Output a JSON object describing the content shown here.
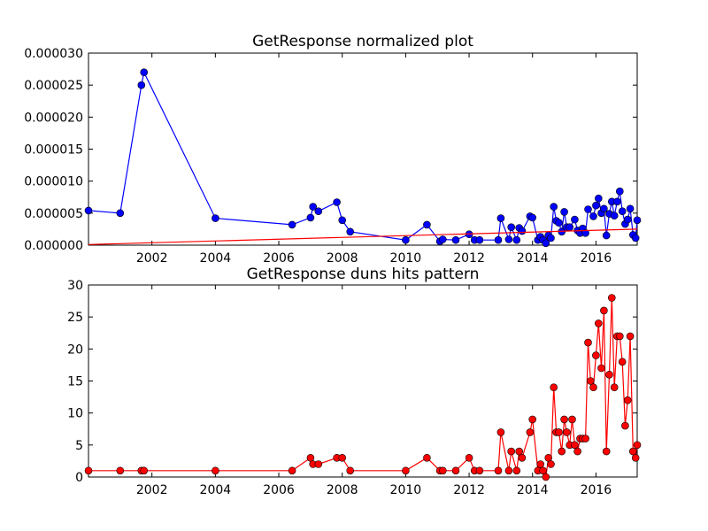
{
  "chart_data": [
    {
      "type": "line",
      "title": "GetResponse normalized plot",
      "xlabel": "",
      "ylabel": "",
      "xlim": [
        2000.0,
        2017.3
      ],
      "ylim": [
        0,
        3e-05
      ],
      "xticks": [
        2002,
        2004,
        2006,
        2008,
        2010,
        2012,
        2014,
        2016
      ],
      "xtick_labels": [
        "2002",
        "2004",
        "2006",
        "2008",
        "2010",
        "2012",
        "2014",
        "2016"
      ],
      "yticks": [
        0,
        5e-06,
        1e-05,
        1.5e-05,
        2e-05,
        2.5e-05,
        3e-05
      ],
      "ytick_labels": [
        "0.000000",
        "0.000005",
        "0.000010",
        "0.000015",
        "0.000020",
        "0.000025",
        "0.000030"
      ],
      "series": [
        {
          "color": "#0000ff",
          "marker": "circle",
          "points": [
            [
              2000.0,
              5.4e-06
            ],
            [
              2001.0,
              5e-06
            ],
            [
              2001.67,
              2.5e-05
            ],
            [
              2001.75,
              2.7e-05
            ],
            [
              2004.0,
              4.2e-06
            ],
            [
              2006.42,
              3.2e-06
            ],
            [
              2007.0,
              4.3e-06
            ],
            [
              2007.08,
              6e-06
            ],
            [
              2007.25,
              5.3e-06
            ],
            [
              2007.83,
              6.7e-06
            ],
            [
              2008.0,
              3.9e-06
            ],
            [
              2008.25,
              2.1e-06
            ],
            [
              2010.0,
              8e-07
            ],
            [
              2010.67,
              3.2e-06
            ],
            [
              2011.08,
              6e-07
            ],
            [
              2011.17,
              9e-07
            ],
            [
              2011.58,
              8e-07
            ],
            [
              2012.0,
              1.7e-06
            ],
            [
              2012.17,
              8e-07
            ],
            [
              2012.33,
              8e-07
            ],
            [
              2012.92,
              8e-07
            ],
            [
              2013.0,
              4.2e-06
            ],
            [
              2013.25,
              9e-07
            ],
            [
              2013.33,
              2.8e-06
            ],
            [
              2013.5,
              8e-07
            ],
            [
              2013.58,
              2.7e-06
            ],
            [
              2013.67,
              2.2e-06
            ],
            [
              2013.92,
              4.5e-06
            ],
            [
              2014.0,
              4.3e-06
            ],
            [
              2014.17,
              8e-07
            ],
            [
              2014.25,
              1.3e-06
            ],
            [
              2014.33,
              8e-07
            ],
            [
              2014.42,
              3e-07
            ],
            [
              2014.5,
              1.5e-06
            ],
            [
              2014.58,
              1.1e-06
            ],
            [
              2014.67,
              6e-06
            ],
            [
              2014.75,
              3.8e-06
            ],
            [
              2014.83,
              3.5e-06
            ],
            [
              2014.92,
              2.1e-06
            ],
            [
              2015.0,
              5.2e-06
            ],
            [
              2015.08,
              2.8e-06
            ],
            [
              2015.17,
              2.8e-06
            ],
            [
              2015.33,
              4e-06
            ],
            [
              2015.42,
              2.3e-06
            ],
            [
              2015.5,
              1.9e-06
            ],
            [
              2015.58,
              2.6e-06
            ],
            [
              2015.67,
              1.9e-06
            ],
            [
              2015.75,
              5.6e-06
            ],
            [
              2015.92,
              4.5e-06
            ],
            [
              2016.0,
              6.2e-06
            ],
            [
              2016.08,
              7.3e-06
            ],
            [
              2016.17,
              5e-06
            ],
            [
              2016.25,
              5.7e-06
            ],
            [
              2016.33,
              1.5e-06
            ],
            [
              2016.42,
              4.9e-06
            ],
            [
              2016.5,
              6.8e-06
            ],
            [
              2016.58,
              4.6e-06
            ],
            [
              2016.67,
              6.8e-06
            ],
            [
              2016.75,
              8.4e-06
            ],
            [
              2016.83,
              5.3e-06
            ],
            [
              2016.92,
              3.3e-06
            ],
            [
              2017.0,
              4e-06
            ],
            [
              2017.08,
              5.7e-06
            ],
            [
              2017.17,
              1.6e-06
            ],
            [
              2017.25,
              1.1e-06
            ],
            [
              2017.3,
              3.9e-06
            ]
          ]
        },
        {
          "color": "#ff0000",
          "marker": "none",
          "points": [
            [
              2000.0,
              1e-07
            ],
            [
              2017.3,
              2.5e-06
            ]
          ]
        }
      ]
    },
    {
      "type": "line",
      "title": "GetResponse duns hits pattern",
      "xlabel": "",
      "ylabel": "",
      "xlim": [
        2000.0,
        2017.3
      ],
      "ylim": [
        0,
        30
      ],
      "xticks": [
        2002,
        2004,
        2006,
        2008,
        2010,
        2012,
        2014,
        2016
      ],
      "xtick_labels": [
        "2002",
        "2004",
        "2006",
        "2008",
        "2010",
        "2012",
        "2014",
        "2016"
      ],
      "yticks": [
        0,
        5,
        10,
        15,
        20,
        25,
        30
      ],
      "ytick_labels": [
        "0",
        "5",
        "10",
        "15",
        "20",
        "25",
        "30"
      ],
      "series": [
        {
          "color": "#ff0000",
          "marker": "circle",
          "points": [
            [
              2000.0,
              1
            ],
            [
              2001.0,
              1
            ],
            [
              2001.67,
              1
            ],
            [
              2001.75,
              1
            ],
            [
              2004.0,
              1
            ],
            [
              2006.42,
              1
            ],
            [
              2007.0,
              3
            ],
            [
              2007.08,
              2
            ],
            [
              2007.25,
              2
            ],
            [
              2007.83,
              3
            ],
            [
              2008.0,
              3
            ],
            [
              2008.25,
              1
            ],
            [
              2010.0,
              1
            ],
            [
              2010.67,
              3
            ],
            [
              2011.08,
              1
            ],
            [
              2011.17,
              1
            ],
            [
              2011.58,
              1
            ],
            [
              2012.0,
              3
            ],
            [
              2012.17,
              1
            ],
            [
              2012.33,
              1
            ],
            [
              2012.92,
              1
            ],
            [
              2013.0,
              7
            ],
            [
              2013.25,
              1
            ],
            [
              2013.33,
              4
            ],
            [
              2013.5,
              1
            ],
            [
              2013.58,
              4
            ],
            [
              2013.67,
              3
            ],
            [
              2013.92,
              7
            ],
            [
              2014.0,
              9
            ],
            [
              2014.17,
              1
            ],
            [
              2014.25,
              2
            ],
            [
              2014.33,
              1
            ],
            [
              2014.42,
              0
            ],
            [
              2014.5,
              3
            ],
            [
              2014.58,
              2
            ],
            [
              2014.67,
              14
            ],
            [
              2014.75,
              7
            ],
            [
              2014.83,
              7
            ],
            [
              2014.92,
              4
            ],
            [
              2015.0,
              9
            ],
            [
              2015.08,
              7
            ],
            [
              2015.17,
              5
            ],
            [
              2015.25,
              9
            ],
            [
              2015.33,
              5
            ],
            [
              2015.42,
              4
            ],
            [
              2015.5,
              6
            ],
            [
              2015.58,
              6
            ],
            [
              2015.67,
              6
            ],
            [
              2015.75,
              21
            ],
            [
              2015.83,
              15
            ],
            [
              2015.92,
              14
            ],
            [
              2016.0,
              19
            ],
            [
              2016.08,
              24
            ],
            [
              2016.17,
              17
            ],
            [
              2016.25,
              26
            ],
            [
              2016.33,
              4
            ],
            [
              2016.42,
              16
            ],
            [
              2016.5,
              28
            ],
            [
              2016.58,
              14
            ],
            [
              2016.67,
              22
            ],
            [
              2016.75,
              22
            ],
            [
              2016.83,
              18
            ],
            [
              2016.92,
              8
            ],
            [
              2017.0,
              12
            ],
            [
              2017.08,
              22
            ],
            [
              2017.17,
              4
            ],
            [
              2017.25,
              3
            ],
            [
              2017.3,
              5
            ]
          ]
        }
      ]
    }
  ]
}
